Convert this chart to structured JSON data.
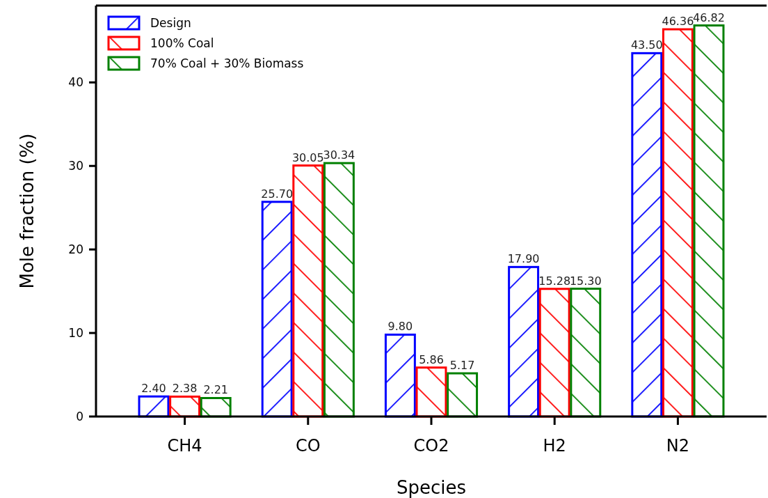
{
  "chart_data": {
    "type": "bar",
    "xlabel": "Species",
    "ylabel": "Mole fraction (%)",
    "categories": [
      "CH4",
      "CO",
      "CO2",
      "H2",
      "N2"
    ],
    "series": [
      {
        "name": "Design",
        "color": "#0000ff",
        "values": [
          2.4,
          25.7,
          9.8,
          17.9,
          43.5
        ],
        "value_labels": [
          "2.40",
          "25.70",
          "9.80",
          "17.90",
          "43.50"
        ]
      },
      {
        "name": "100% Coal",
        "color": "#ff0000",
        "values": [
          2.38,
          30.05,
          5.86,
          15.28,
          46.36
        ],
        "value_labels": [
          "2.38",
          "30.05",
          "5.86",
          "15.28",
          "46.36"
        ]
      },
      {
        "name": "70% Coal + 30% Biomass",
        "color": "#008000",
        "values": [
          2.21,
          30.34,
          5.17,
          15.3,
          46.82
        ],
        "value_labels": [
          "2.21",
          "30.34",
          "5.17",
          "15.30",
          "46.82"
        ]
      }
    ],
    "ylim": [
      0,
      49.2
    ],
    "yticks": [
      0,
      10,
      20,
      30,
      40
    ],
    "legend": "top left",
    "grid": false
  }
}
